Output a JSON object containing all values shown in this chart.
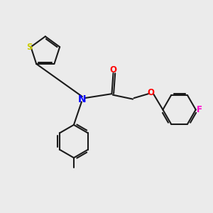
{
  "bg_color": "#ebebeb",
  "bond_color": "#1a1a1a",
  "N_color": "#0000ff",
  "O_color": "#ff0000",
  "S_color": "#cccc00",
  "F_color": "#ff00cc",
  "line_width": 1.5,
  "font_size": 8.5,
  "xlim": [
    0,
    10
  ],
  "ylim": [
    0,
    10
  ]
}
